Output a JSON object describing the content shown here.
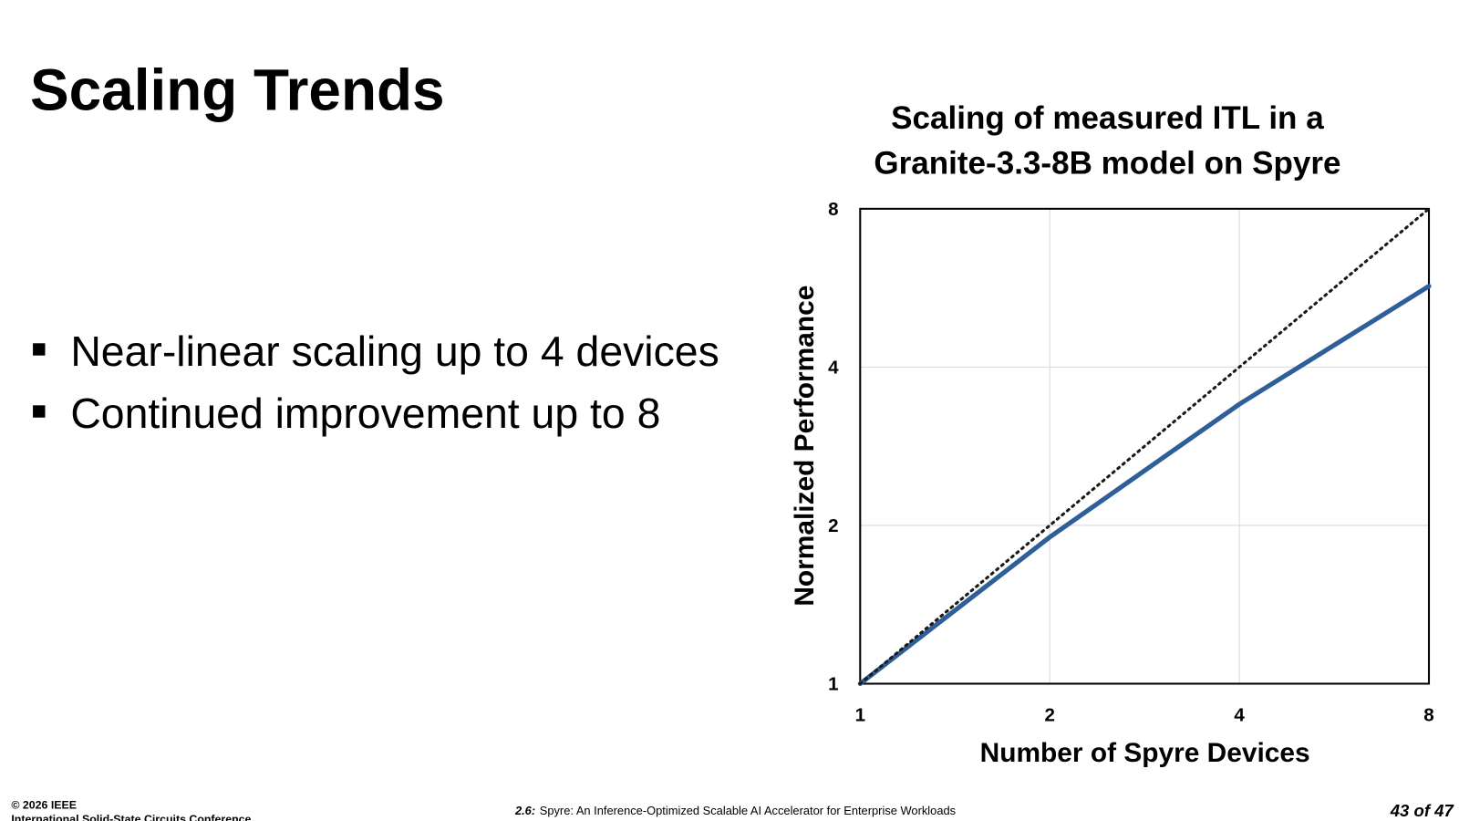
{
  "title": "Scaling Trends",
  "bullets": [
    "Near-linear scaling up to 4 devices",
    "Continued improvement up to 8"
  ],
  "chart_data": {
    "type": "line",
    "title": [
      "Scaling of measured ITL in a",
      "Granite-3.3-8B model on Spyre"
    ],
    "x_label": "Number of Spyre Devices",
    "y_label": "Normalized Performance",
    "x": [
      1,
      2,
      4,
      8
    ],
    "series": [
      {
        "color": "#2e5f99",
        "line_style": "solid",
        "values": [
          1,
          1.9,
          3.4,
          5.7
        ]
      },
      {
        "color": "#1a1a1a",
        "line_style": "dotted",
        "values": [
          1,
          2,
          4,
          8
        ]
      }
    ],
    "xlim": [
      1,
      8
    ],
    "xticks": [
      1,
      2,
      4,
      8
    ],
    "x_log": true,
    "ylim": [
      1,
      8
    ],
    "yticks": [
      1,
      2,
      4,
      8
    ],
    "y_log": true,
    "grid": true
  },
  "footer": {
    "copyright": "© 2026 IEEE",
    "conference": "International Solid-State Circuits Conference",
    "paper_number": "2.6:",
    "paper_title": "Spyre: An Inference-Optimized Scalable AI Accelerator for Enterprise Workloads",
    "page": "43 of 47"
  }
}
